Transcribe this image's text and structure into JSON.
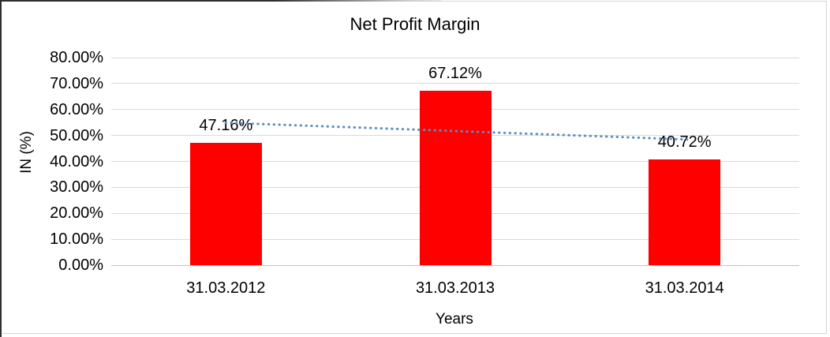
{
  "chart_data": {
    "type": "bar",
    "title": "Net Profit Margin",
    "xlabel": "Years",
    "ylabel": "IN (%)",
    "categories": [
      "31.03.2012",
      "31.03.2013",
      "31.03.2014"
    ],
    "values": [
      47.16,
      67.12,
      40.72
    ],
    "data_labels": [
      "47.16%",
      "67.12%",
      "40.72%"
    ],
    "ylim": [
      0,
      80
    ],
    "ytick_step": 10,
    "yticks": [
      "0.00%",
      "10.00%",
      "20.00%",
      "30.00%",
      "40.00%",
      "50.00%",
      "60.00%",
      "70.00%",
      "80.00%"
    ],
    "grid": true,
    "legend": "none",
    "bar_color": "#fe0000",
    "gridline_color": "#d9d9d9",
    "axis_line_color": "#c2c2c2",
    "trendline": {
      "type": "linear",
      "style": "dotted",
      "color": "#5b8dc4",
      "start_value": 54.9,
      "end_value": 48.4
    }
  }
}
